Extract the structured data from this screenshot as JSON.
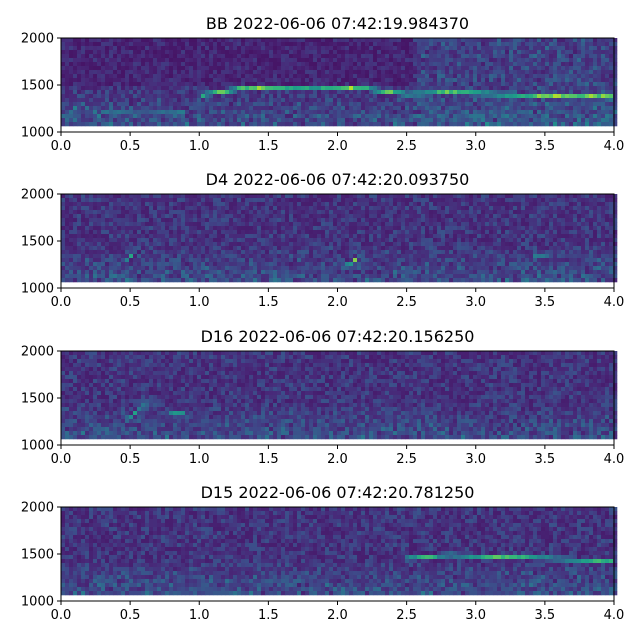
{
  "chart_data": [
    {
      "type": "heatmap",
      "title": "BB 2022-06-06 07:42:19.984370",
      "xlim": [
        0.0,
        4.0
      ],
      "ylim": [
        1000,
        2000
      ],
      "xticks": [
        "0.0",
        "0.5",
        "1.0",
        "1.5",
        "2.0",
        "2.5",
        "3.0",
        "3.5",
        "4.0"
      ],
      "yticks": [
        "1000",
        "1500",
        "2000"
      ],
      "colormap": "viridis",
      "features": [
        {
          "x": [
            1.0,
            1.3,
            1.6,
            1.9,
            2.2,
            2.5,
            2.8,
            3.2,
            3.6,
            4.0
          ],
          "y": [
            1390,
            1460,
            1480,
            1480,
            1460,
            1400,
            1420,
            1400,
            1380,
            1380
          ],
          "intensity": 0.95
        },
        {
          "x": [
            0.3,
            0.6,
            0.9
          ],
          "y": [
            1220,
            1230,
            1220
          ],
          "intensity": 0.55
        },
        {
          "x": [
            0.0,
            0.15,
            0.3
          ],
          "y": [
            1150,
            1300,
            1150
          ],
          "intensity": 0.5
        }
      ]
    },
    {
      "type": "heatmap",
      "title": "D4 2022-06-06 07:42:20.093750",
      "xlim": [
        0.0,
        4.0
      ],
      "ylim": [
        1000,
        2000
      ],
      "xticks": [
        "0.0",
        "0.5",
        "1.0",
        "1.5",
        "2.0",
        "2.5",
        "3.0",
        "3.5",
        "4.0"
      ],
      "yticks": [
        "1000",
        "1500",
        "2000"
      ],
      "colormap": "viridis",
      "features": [
        {
          "x": [
            0.45,
            0.52
          ],
          "y": [
            1280,
            1350
          ],
          "intensity": 0.7
        },
        {
          "x": [
            2.05,
            2.15
          ],
          "y": [
            1220,
            1320
          ],
          "intensity": 0.85
        },
        {
          "x": [
            3.4,
            3.55
          ],
          "y": [
            1340,
            1360
          ],
          "intensity": 0.6
        }
      ]
    },
    {
      "type": "heatmap",
      "title": "D16 2022-06-06 07:42:20.156250",
      "xlim": [
        0.0,
        4.0
      ],
      "ylim": [
        1000,
        2000
      ],
      "xticks": [
        "0.0",
        "0.5",
        "1.0",
        "1.5",
        "2.0",
        "2.5",
        "3.0",
        "3.5",
        "4.0"
      ],
      "yticks": [
        "1000",
        "1500",
        "2000"
      ],
      "colormap": "viridis",
      "features": [
        {
          "x": [
            0.45,
            0.55,
            0.65
          ],
          "y": [
            1250,
            1350,
            1480
          ],
          "intensity": 0.75
        },
        {
          "x": [
            0.78,
            0.9
          ],
          "y": [
            1330,
            1350
          ],
          "intensity": 0.7
        }
      ]
    },
    {
      "type": "heatmap",
      "title": "D15 2022-06-06 07:42:20.781250",
      "xlim": [
        0.0,
        4.0
      ],
      "ylim": [
        1000,
        2000
      ],
      "xticks": [
        "0.0",
        "0.5",
        "1.0",
        "1.5",
        "2.0",
        "2.5",
        "3.0",
        "3.5",
        "4.0"
      ],
      "yticks": [
        "1000",
        "1500",
        "2000"
      ],
      "colormap": "viridis",
      "features": [
        {
          "x": [
            2.5,
            2.8,
            3.1,
            3.4,
            3.7,
            4.0
          ],
          "y": [
            1450,
            1490,
            1470,
            1460,
            1440,
            1420
          ],
          "intensity": 0.8
        },
        {
          "x": [
            0.75,
            1.0,
            1.3
          ],
          "y": [
            1100,
            1110,
            1100
          ],
          "intensity": 0.55
        }
      ]
    }
  ]
}
